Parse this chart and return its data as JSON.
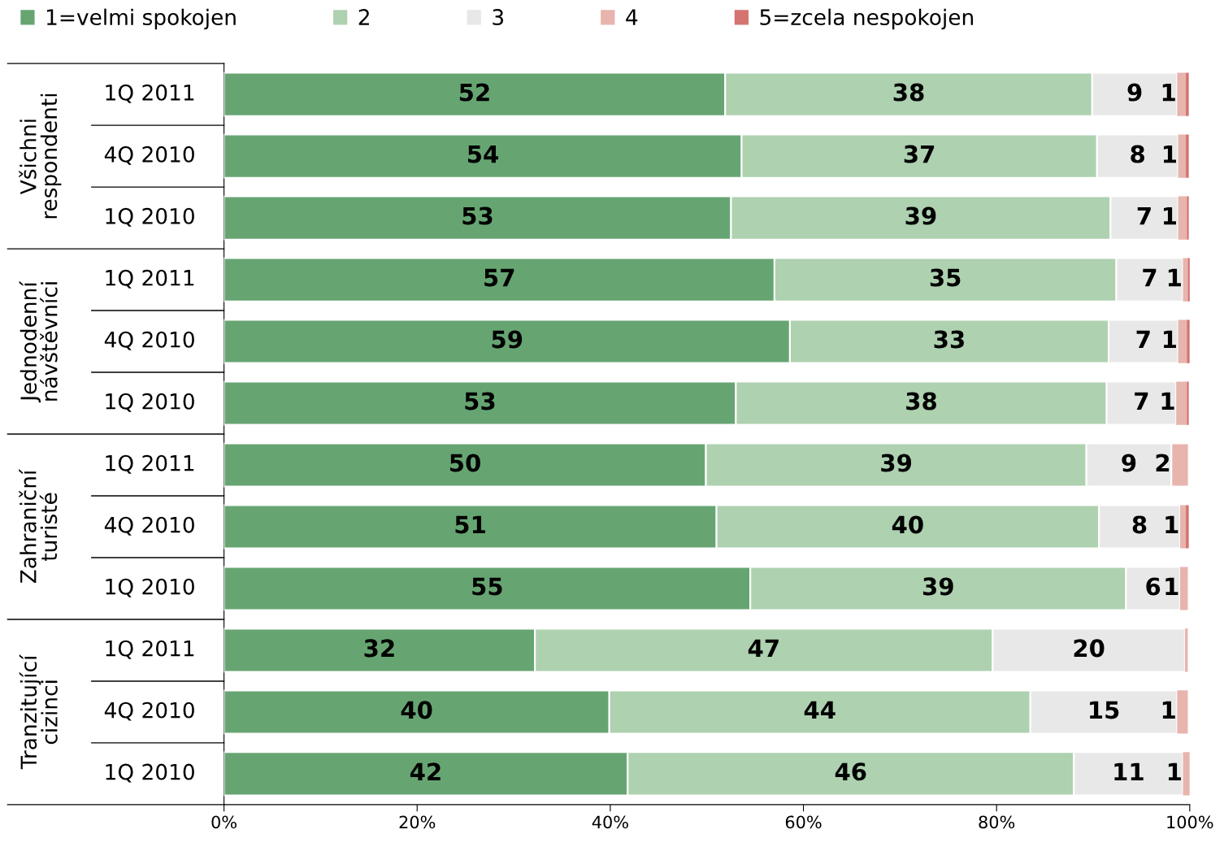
{
  "chart_data": {
    "type": "bar",
    "orientation": "horizontal",
    "stacked": true,
    "categories": [
      "1Q 2011",
      "4Q 2010",
      "1Q 2010",
      "1Q 2011",
      "4Q 2010",
      "1Q 2010",
      "1Q 2011",
      "4Q 2010",
      "1Q 2010",
      "1Q 2011",
      "4Q 2010",
      "1Q 2010"
    ],
    "annotations": [
      "Všichni respondenti",
      "Jednodenní návštěvníci",
      "Zahraniční turisté",
      "Tranzitující cizinci"
    ],
    "series": [
      {
        "name": "1=velmi spokojen",
        "color": "#66a572",
        "values": [
          51.9,
          53.6,
          52.5,
          57.0,
          58.6,
          53.0,
          49.9,
          51.0,
          54.5,
          32.2,
          39.9,
          41.8
        ],
        "value_labels": [
          "52",
          "54",
          "53",
          "57",
          "59",
          "53",
          "50",
          "51",
          "55",
          "32",
          "40",
          "42"
        ]
      },
      {
        "name": "2",
        "color": "#aed1b0",
        "values": [
          38.0,
          36.8,
          39.3,
          35.4,
          33.0,
          38.4,
          39.4,
          39.6,
          38.9,
          47.4,
          43.6,
          46.2
        ],
        "value_labels": [
          "38",
          "37",
          "39",
          "35",
          "33",
          "38",
          "39",
          "40",
          "39",
          "47",
          "44",
          "46"
        ]
      },
      {
        "name": "3",
        "color": "#e8e8e8",
        "values": [
          8.8,
          8.4,
          7.0,
          6.9,
          7.2,
          7.2,
          8.8,
          8.4,
          5.6,
          19.9,
          15.2,
          11.3
        ],
        "value_labels": [
          "9",
          "8",
          "7",
          "7",
          "7",
          "7",
          "9",
          "8",
          "6",
          "20",
          "15",
          "11"
        ]
      },
      {
        "name": "4",
        "color": "#e8b4ae",
        "values": [
          0.9,
          0.8,
          0.9,
          0.5,
          0.9,
          1.1,
          1.8,
          0.6,
          0.8,
          0.3,
          1.1,
          0.7
        ],
        "value_labels": [
          "1",
          "1",
          "1",
          "1",
          "1",
          "1",
          "2",
          "1",
          "1",
          null,
          "1",
          "1"
        ]
      },
      {
        "name": "5=zcela nespokojen",
        "color": "#d47370",
        "values": [
          0.3,
          0.3,
          0.2,
          0.3,
          0.3,
          0.2,
          0,
          0.3,
          0,
          0,
          0,
          0
        ]
      }
    ],
    "xlim": [
      0,
      100
    ],
    "xticks": [
      {
        "value": 0,
        "label": "0%"
      },
      {
        "value": 20,
        "label": "20%"
      },
      {
        "value": 40,
        "label": "40%"
      },
      {
        "value": 60,
        "label": "60%"
      },
      {
        "value": 80,
        "label": "80%"
      },
      {
        "value": 100,
        "label": "100%"
      }
    ],
    "grid": false,
    "legend": "top"
  }
}
